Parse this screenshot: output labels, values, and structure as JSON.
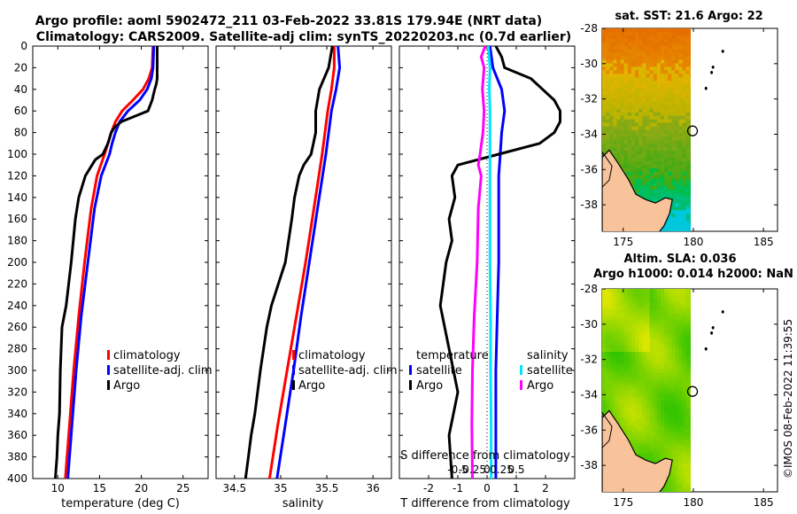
{
  "title": {
    "line1": "Argo profile: aoml 5902472_211 03-Feb-2022 33.81S 179.94E (NRT data)",
    "line2": "Climatology: CARS2009. Satellite-adj clim: synTS_20220203.nc (0.7d earlier)"
  },
  "watermark": "©IMOS 08-Feb-2022 11:39:55",
  "colors": {
    "clim": "#ff0000",
    "sat": "#0000ff",
    "argo": "#000000",
    "sat_s": "#00e5ff",
    "argo_s": "#ff00ff"
  },
  "chart_data": [
    {
      "id": "temperature",
      "type": "line",
      "xlabel": "temperature (deg C)",
      "xlim": [
        7,
        28
      ],
      "xticks": [
        10,
        15,
        20,
        25
      ],
      "xtick_labels": [
        "10",
        "15",
        "20",
        "25"
      ],
      "ylim": [
        400,
        0
      ],
      "yticks": [
        0,
        20,
        40,
        60,
        80,
        100,
        120,
        140,
        160,
        180,
        200,
        220,
        240,
        260,
        280,
        300,
        320,
        340,
        360,
        380,
        400
      ],
      "ytick_labels": [
        "0",
        "20",
        "40",
        "60",
        "80",
        "100",
        "120",
        "140",
        "160",
        "180",
        "200",
        "220",
        "240",
        "260",
        "280",
        "300",
        "320",
        "340",
        "360",
        "380",
        "400"
      ],
      "legend": [
        "climatology",
        "satellite-adj. clim",
        "Argo"
      ],
      "series": [
        {
          "name": "climatology",
          "color": "#ff0000",
          "depth": [
            0,
            20,
            30,
            40,
            50,
            60,
            70,
            80,
            90,
            100,
            120,
            150,
            200,
            250,
            300,
            350,
            400
          ],
          "values": [
            21.4,
            21.3,
            20.9,
            20.2,
            19.0,
            17.7,
            16.9,
            16.4,
            16.0,
            15.6,
            14.7,
            14.0,
            13.2,
            12.5,
            11.9,
            11.4,
            10.9
          ]
        },
        {
          "name": "satellite-adj. clim",
          "color": "#0000ff",
          "depth": [
            0,
            20,
            30,
            40,
            50,
            60,
            70,
            80,
            90,
            100,
            120,
            150,
            200,
            250,
            300,
            350,
            400
          ],
          "values": [
            21.5,
            21.4,
            21.2,
            20.7,
            19.8,
            18.4,
            17.4,
            16.9,
            16.5,
            16.2,
            15.2,
            14.4,
            13.6,
            12.8,
            12.2,
            11.7,
            11.2
          ]
        },
        {
          "name": "Argo",
          "color": "#000000",
          "depth": [
            0,
            20,
            30,
            35,
            40,
            50,
            60,
            70,
            75,
            80,
            90,
            100,
            105,
            110,
            120,
            140,
            160,
            200,
            240,
            260,
            300,
            340,
            360,
            380,
            400
          ],
          "values": [
            21.9,
            21.9,
            21.9,
            21.8,
            21.6,
            21.3,
            20.8,
            17.6,
            16.8,
            16.4,
            16.0,
            15.4,
            14.5,
            14.1,
            13.3,
            12.5,
            12.1,
            11.6,
            11.0,
            10.5,
            10.3,
            10.2,
            10.0,
            9.9,
            9.7
          ]
        }
      ]
    },
    {
      "id": "salinity",
      "type": "line",
      "xlabel": "salinity",
      "xlim": [
        34.3,
        36.2
      ],
      "xticks": [
        34.5,
        35,
        35.5,
        36
      ],
      "xtick_labels": [
        "34.5",
        "35",
        "35.5",
        "36"
      ],
      "ylim": [
        400,
        0
      ],
      "legend": [
        "climatology",
        "satellite-adj. clim",
        "Argo"
      ],
      "series": [
        {
          "name": "climatology",
          "color": "#ff0000",
          "depth": [
            0,
            20,
            40,
            60,
            100,
            150,
            200,
            250,
            300,
            350,
            400
          ],
          "values": [
            35.58,
            35.58,
            35.55,
            35.51,
            35.45,
            35.36,
            35.27,
            35.17,
            35.07,
            34.97,
            34.88
          ]
        },
        {
          "name": "satellite-adj. clim",
          "color": "#0000ff",
          "depth": [
            0,
            20,
            40,
            60,
            100,
            150,
            200,
            250,
            300,
            350,
            400
          ],
          "values": [
            35.62,
            35.64,
            35.6,
            35.55,
            35.49,
            35.4,
            35.31,
            35.22,
            35.14,
            35.05,
            34.96
          ]
        },
        {
          "name": "Argo",
          "color": "#000000",
          "depth": [
            0,
            20,
            40,
            60,
            80,
            100,
            110,
            120,
            140,
            160,
            200,
            240,
            260,
            300,
            340,
            360,
            380,
            400
          ],
          "values": [
            35.56,
            35.52,
            35.42,
            35.38,
            35.38,
            35.33,
            35.25,
            35.2,
            35.15,
            35.12,
            35.05,
            34.9,
            34.85,
            34.78,
            34.72,
            34.68,
            34.65,
            34.62
          ]
        }
      ]
    },
    {
      "id": "difference",
      "type": "line",
      "xlabel": "T difference from climatology",
      "xlim": [
        -3,
        3
      ],
      "xticks": [
        -2,
        -1,
        0,
        1,
        2
      ],
      "xtick_labels": [
        "-2",
        "-1",
        "0",
        "1",
        "2"
      ],
      "ylim": [
        400,
        0
      ],
      "top_label": "S difference from climatology",
      "top_ticks": [
        -0.5,
        -0.25,
        0,
        0.25,
        0.5
      ],
      "top_tick_labels": [
        "-0.5",
        "-0.25",
        "0",
        "0.25",
        "0.5"
      ],
      "legend_temperature_title": "temperature",
      "legend_salinity_title": "salinity",
      "legend_temperature": [
        "satellite",
        "Argo"
      ],
      "legend_salinity": [
        "satellite",
        "Argo"
      ],
      "series": [
        {
          "name": "T satellite",
          "color": "#0000ff",
          "depth": [
            0,
            20,
            40,
            60,
            80,
            100,
            120,
            150,
            200,
            250,
            300,
            350,
            400
          ],
          "values": [
            0.1,
            0.2,
            0.5,
            0.6,
            0.5,
            0.45,
            0.4,
            0.4,
            0.4,
            0.35,
            0.3,
            0.3,
            0.3
          ]
        },
        {
          "name": "T Argo",
          "color": "#000000",
          "depth": [
            0,
            10,
            20,
            30,
            40,
            50,
            60,
            70,
            80,
            90,
            100,
            110,
            120,
            140,
            160,
            180,
            200,
            240,
            280,
            320,
            360,
            400
          ],
          "values": [
            0.3,
            0.5,
            0.6,
            1.5,
            1.9,
            2.3,
            2.5,
            2.5,
            2.3,
            1.8,
            0.4,
            -1.0,
            -1.2,
            -1.1,
            -1.3,
            -1.2,
            -1.4,
            -1.6,
            -1.3,
            -1.0,
            -1.3,
            -1.2
          ]
        },
        {
          "name": "S satellite",
          "color": "#00e5ff",
          "depth": [
            0,
            20,
            40,
            60,
            100,
            150,
            200,
            250,
            300,
            350,
            400
          ],
          "values": [
            0.02,
            0.05,
            0.04,
            0.05,
            0.05,
            0.05,
            0.05,
            0.06,
            0.06,
            0.07,
            0.07
          ]
        },
        {
          "name": "S Argo",
          "color": "#ff00ff",
          "depth": [
            0,
            10,
            20,
            40,
            60,
            80,
            100,
            110,
            120,
            150,
            200,
            250,
            300,
            350,
            400
          ],
          "values": [
            -0.03,
            -0.1,
            -0.05,
            -0.08,
            -0.05,
            -0.07,
            -0.12,
            -0.15,
            -0.1,
            -0.15,
            -0.17,
            -0.22,
            -0.25,
            -0.26,
            -0.25
          ]
        }
      ]
    },
    {
      "id": "sst_map",
      "type": "heatmap",
      "title": "sat. SST: 21.6 Argo: 22",
      "xlim": [
        173.5,
        186
      ],
      "ylim": [
        -39.5,
        -28
      ],
      "xticks": [
        175,
        180,
        185
      ],
      "xtick_labels": [
        "175",
        "180",
        "185"
      ],
      "yticks": [
        -28,
        -30,
        -32,
        -34,
        -36,
        -38
      ],
      "ytick_labels": [
        "-28",
        "-30",
        "-32",
        "-34",
        "-36",
        "-38"
      ],
      "float_position": [
        179.94,
        -33.81
      ]
    },
    {
      "id": "sla_map",
      "type": "heatmap",
      "title_line1": "Altim. SLA: 0.036",
      "title_line2": "Argo h1000: 0.014 h2000: NaN",
      "xlim": [
        173.5,
        186
      ],
      "ylim": [
        -39.5,
        -28
      ],
      "xticks": [
        175,
        180,
        185
      ],
      "xtick_labels": [
        "175",
        "180",
        "185"
      ],
      "yticks": [
        -28,
        -30,
        -32,
        -34,
        -36,
        -38
      ],
      "ytick_labels": [
        "-28",
        "-30",
        "-32",
        "-34",
        "-36",
        "-38"
      ],
      "float_position": [
        179.94,
        -33.81
      ]
    }
  ]
}
